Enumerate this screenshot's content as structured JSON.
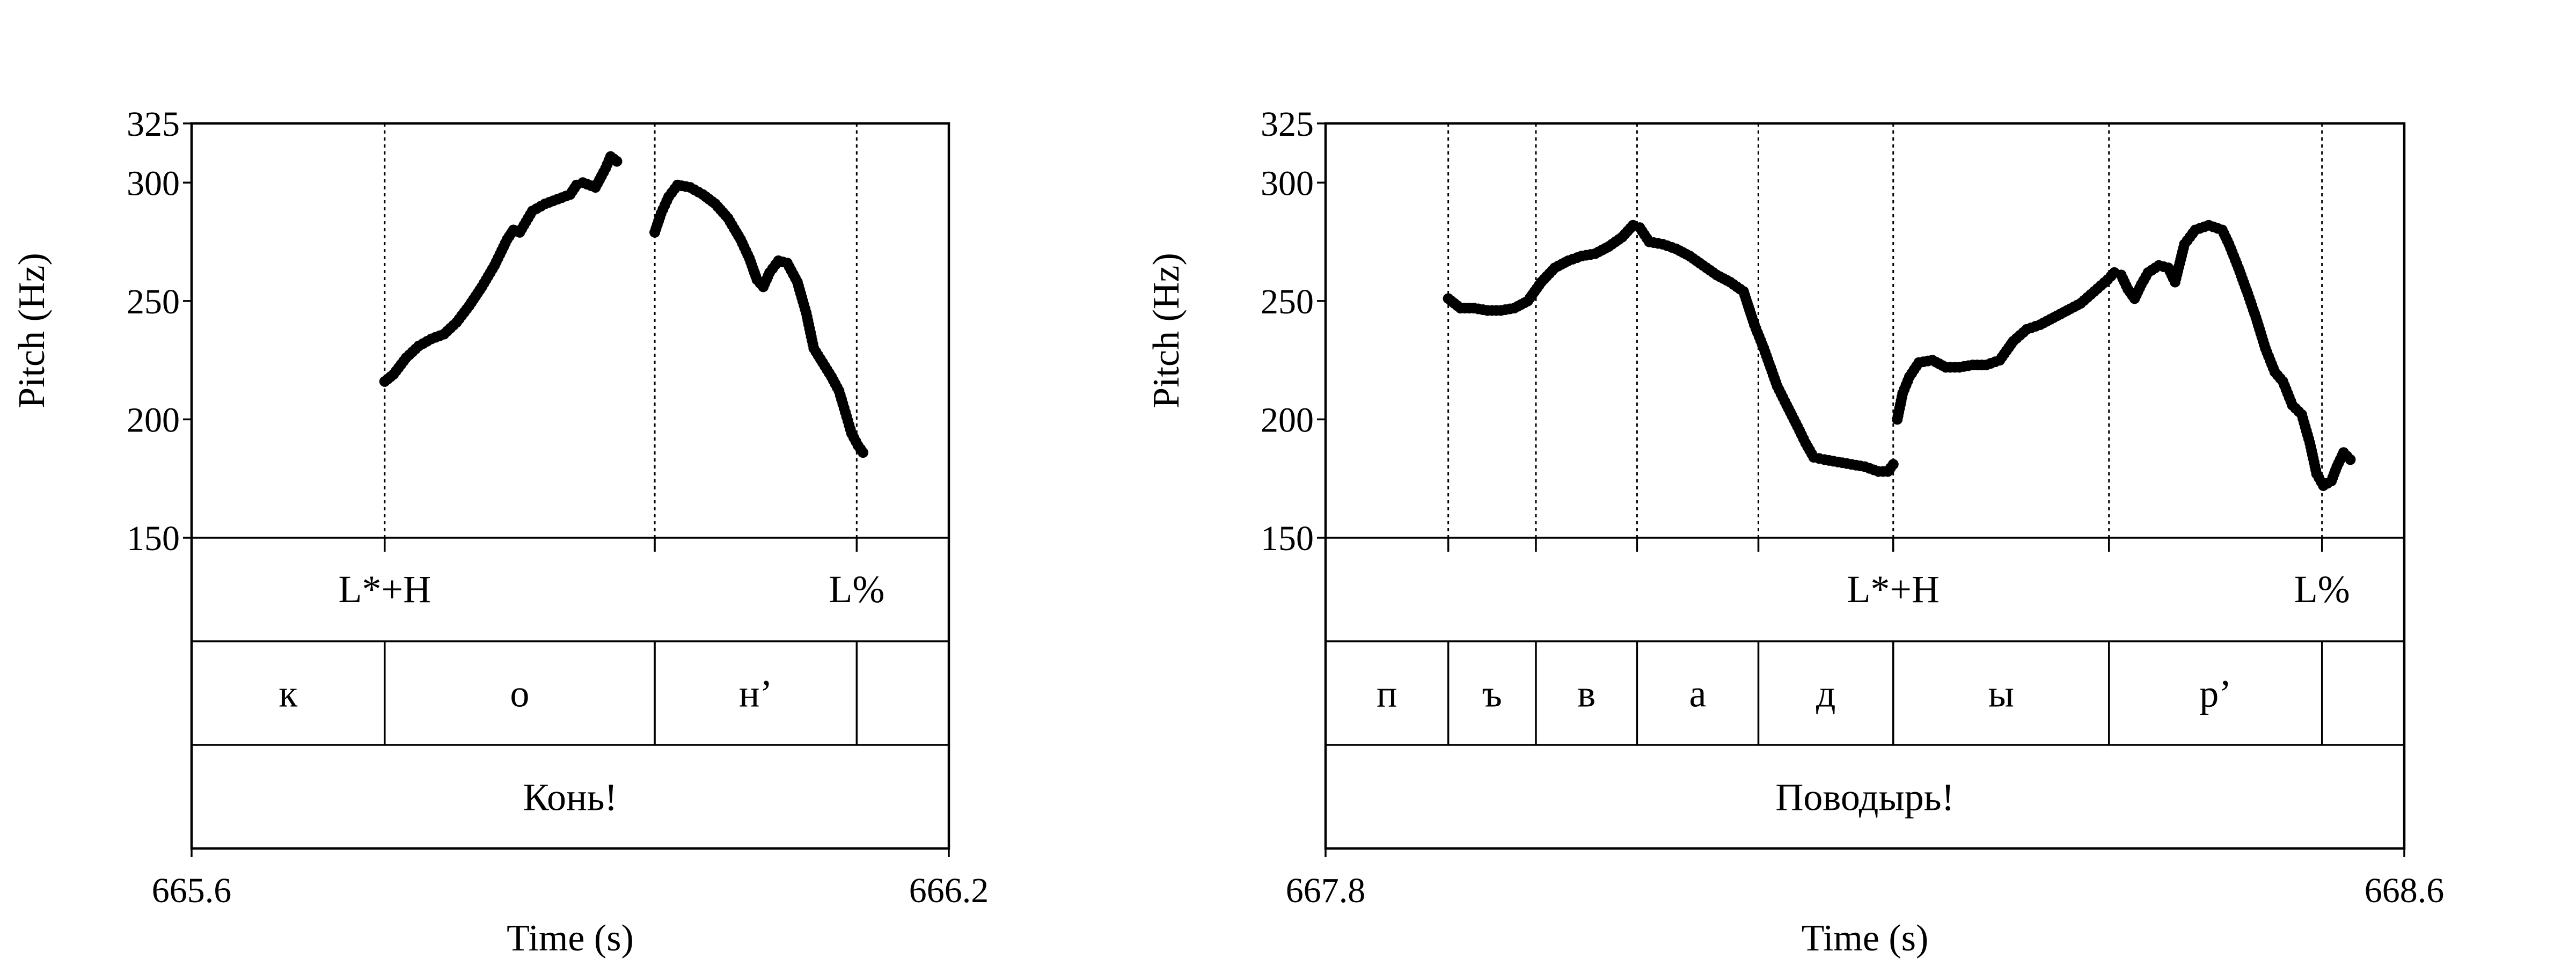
{
  "chart_data": [
    {
      "type": "scatter",
      "title": "",
      "xlabel": "Time (s)",
      "ylabel": "Pitch (Hz)",
      "xlim": [
        665.6,
        666.2
      ],
      "ylim": [
        150,
        325
      ],
      "x_ticks": [
        "665.6",
        "666.2"
      ],
      "y_ticks": [
        "150",
        "200",
        "250",
        "300",
        "325"
      ],
      "boundaries": [
        665.753,
        665.967,
        666.127
      ],
      "tones": [
        {
          "time": 665.753,
          "label": "L*+H"
        },
        {
          "time": 666.127,
          "label": "L%"
        }
      ],
      "segments": [
        {
          "start": 665.6,
          "end": 665.753,
          "label": "к"
        },
        {
          "start": 665.753,
          "end": 665.967,
          "label": "о"
        },
        {
          "start": 665.967,
          "end": 666.127,
          "label": "н’"
        },
        {
          "start": 666.127,
          "end": 666.2,
          "label": ""
        }
      ],
      "word": "Конь!",
      "pitch_segments": [
        [
          [
            665.753,
            216
          ],
          [
            665.76,
            219
          ],
          [
            665.77,
            226
          ],
          [
            665.78,
            231
          ],
          [
            665.79,
            234
          ],
          [
            665.8,
            236
          ],
          [
            665.81,
            241
          ],
          [
            665.82,
            248
          ],
          [
            665.83,
            256
          ],
          [
            665.84,
            265
          ],
          [
            665.85,
            276
          ],
          [
            665.855,
            280
          ],
          [
            665.86,
            279
          ],
          [
            665.87,
            288
          ],
          [
            665.88,
            291
          ],
          [
            665.89,
            293
          ],
          [
            665.9,
            295
          ],
          [
            665.905,
            299
          ],
          [
            665.91,
            300
          ],
          [
            665.92,
            298
          ],
          [
            665.928,
            306
          ],
          [
            665.932,
            311
          ],
          [
            665.937,
            309
          ]
        ],
        [
          [
            665.967,
            279
          ],
          [
            665.972,
            287
          ],
          [
            665.978,
            294
          ],
          [
            665.985,
            299
          ],
          [
            665.995,
            298
          ],
          [
            666.005,
            295
          ],
          [
            666.015,
            291
          ],
          [
            666.025,
            285
          ],
          [
            666.035,
            276
          ],
          [
            666.042,
            268
          ],
          [
            666.048,
            259
          ],
          [
            666.053,
            256
          ],
          [
            666.058,
            262
          ],
          [
            666.065,
            267
          ],
          [
            666.072,
            266
          ],
          [
            666.08,
            258
          ],
          [
            666.087,
            245
          ],
          [
            666.093,
            230
          ],
          [
            666.1,
            224
          ],
          [
            666.107,
            218
          ],
          [
            666.113,
            212
          ],
          [
            666.118,
            203
          ],
          [
            666.123,
            194
          ],
          [
            666.128,
            189
          ],
          [
            666.132,
            186
          ]
        ]
      ]
    },
    {
      "type": "scatter",
      "title": "",
      "xlabel": "Time (s)",
      "ylabel": "Pitch (Hz)",
      "xlim": [
        667.8,
        668.6
      ],
      "ylim": [
        150,
        325
      ],
      "x_ticks": [
        "667.8",
        "668.6"
      ],
      "y_ticks": [
        "150",
        "200",
        "250",
        "300",
        "325"
      ],
      "boundaries": [
        667.891,
        667.956,
        668.031,
        668.121,
        668.221,
        668.381,
        668.539
      ],
      "tones": [
        {
          "time": 668.221,
          "label": "L*+H"
        },
        {
          "time": 668.539,
          "label": "L%"
        }
      ],
      "segments": [
        {
          "start": 667.8,
          "end": 667.891,
          "label": "п"
        },
        {
          "start": 667.891,
          "end": 667.956,
          "label": "ъ"
        },
        {
          "start": 667.956,
          "end": 668.031,
          "label": "в"
        },
        {
          "start": 668.031,
          "end": 668.121,
          "label": "а"
        },
        {
          "start": 668.121,
          "end": 668.221,
          "label": "д"
        },
        {
          "start": 668.221,
          "end": 668.381,
          "label": "ы"
        },
        {
          "start": 668.381,
          "end": 668.539,
          "label": "р’"
        },
        {
          "start": 668.539,
          "end": 668.6,
          "label": ""
        }
      ],
      "word": "Поводырь!",
      "pitch_segments": [
        [
          [
            667.891,
            251
          ],
          [
            667.9,
            247
          ],
          [
            667.91,
            247
          ],
          [
            667.92,
            246
          ],
          [
            667.93,
            246
          ],
          [
            667.94,
            247
          ],
          [
            667.95,
            250
          ],
          [
            667.96,
            258
          ],
          [
            667.97,
            264
          ],
          [
            667.98,
            267
          ],
          [
            667.99,
            269
          ],
          [
            668.0,
            270
          ],
          [
            668.01,
            273
          ],
          [
            668.02,
            277
          ],
          [
            668.028,
            282
          ],
          [
            668.033,
            281
          ],
          [
            668.04,
            275
          ],
          [
            668.05,
            274
          ],
          [
            668.06,
            272
          ],
          [
            668.07,
            269
          ],
          [
            668.08,
            265
          ],
          [
            668.09,
            261
          ],
          [
            668.1,
            258
          ],
          [
            668.11,
            254
          ],
          [
            668.118,
            240
          ],
          [
            668.125,
            230
          ],
          [
            668.13,
            222
          ],
          [
            668.135,
            214
          ],
          [
            668.142,
            206
          ],
          [
            668.15,
            197
          ],
          [
            668.156,
            190
          ],
          [
            668.162,
            184
          ],
          [
            668.17,
            183
          ],
          [
            668.18,
            182
          ],
          [
            668.19,
            181
          ],
          [
            668.2,
            180
          ],
          [
            668.21,
            178
          ],
          [
            668.217,
            178
          ],
          [
            668.221,
            181
          ]
        ],
        [
          [
            668.224,
            200
          ],
          [
            668.228,
            211
          ],
          [
            668.233,
            218
          ],
          [
            668.24,
            224
          ],
          [
            668.25,
            225
          ],
          [
            668.26,
            222
          ],
          [
            668.27,
            222
          ],
          [
            668.28,
            223
          ],
          [
            668.29,
            223
          ],
          [
            668.3,
            225
          ],
          [
            668.31,
            233
          ],
          [
            668.32,
            238
          ],
          [
            668.33,
            240
          ],
          [
            668.34,
            243
          ],
          [
            668.35,
            246
          ],
          [
            668.36,
            249
          ],
          [
            668.37,
            254
          ],
          [
            668.38,
            259
          ],
          [
            668.385,
            262
          ],
          [
            668.39,
            261
          ],
          [
            668.395,
            255
          ],
          [
            668.4,
            251
          ],
          [
            668.405,
            257
          ],
          [
            668.41,
            262
          ],
          [
            668.418,
            265
          ],
          [
            668.425,
            264
          ],
          [
            668.43,
            258
          ],
          [
            668.437,
            274
          ],
          [
            668.445,
            280
          ],
          [
            668.455,
            282
          ],
          [
            668.465,
            280
          ],
          [
            668.47,
            274
          ],
          [
            668.477,
            264
          ],
          [
            668.484,
            253
          ],
          [
            668.49,
            243
          ],
          [
            668.497,
            230
          ],
          [
            668.504,
            220
          ],
          [
            668.51,
            216
          ],
          [
            668.517,
            206
          ],
          [
            668.524,
            202
          ],
          [
            668.53,
            190
          ],
          [
            668.535,
            177
          ],
          [
            668.54,
            172
          ],
          [
            668.546,
            174
          ],
          [
            668.55,
            180
          ],
          [
            668.555,
            186
          ],
          [
            668.56,
            183
          ]
        ]
      ]
    }
  ]
}
